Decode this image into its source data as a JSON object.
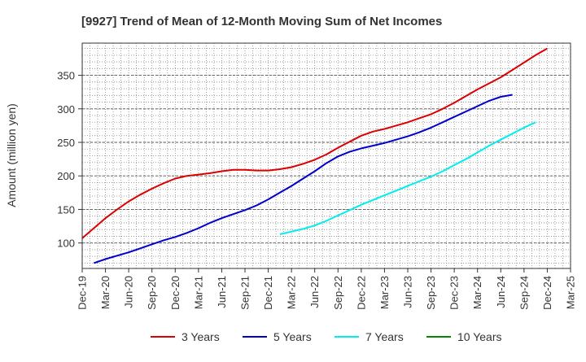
{
  "chart_data": {
    "type": "line",
    "title": "[9927]  Trend of Mean of 12-Month Moving Sum of Net Incomes",
    "ylabel": "Amount (million yen)",
    "xlabel": "",
    "x_ticks": [
      "Dec-19",
      "Mar-20",
      "Jun-20",
      "Sep-20",
      "Dec-20",
      "Mar-21",
      "Jun-21",
      "Sep-21",
      "Dec-21",
      "Mar-22",
      "Jun-22",
      "Sep-22",
      "Dec-22",
      "Mar-23",
      "Jun-23",
      "Sep-23",
      "Dec-23",
      "Mar-24",
      "Jun-24",
      "Sep-24",
      "Dec-24",
      "Mar-25"
    ],
    "y_ticks": [
      100,
      150,
      200,
      250,
      300,
      350
    ],
    "ylim": [
      62,
      398
    ],
    "grid": true,
    "legend_position": "bottom",
    "series": [
      {
        "name": "3 Years",
        "color": "#dd0000",
        "start_index": 0,
        "values": [
          107,
          122,
          137,
          150,
          162,
          172,
          181,
          189,
          196,
          200,
          202,
          204,
          207,
          209,
          209,
          208,
          208,
          210,
          213,
          218,
          224,
          232,
          242,
          251,
          260,
          266,
          270,
          275,
          280,
          286,
          292,
          300,
          309,
          319,
          329,
          338,
          347,
          358,
          369,
          380,
          390
        ]
      },
      {
        "name": "5 Years",
        "color": "#0000cc",
        "start_index": 1,
        "values": [
          70,
          76,
          81,
          86,
          92,
          98,
          104,
          109,
          115,
          122,
          130,
          137,
          143,
          149,
          156,
          165,
          175,
          185,
          196,
          207,
          219,
          229,
          236,
          241,
          245,
          249,
          254,
          259,
          265,
          272,
          280,
          288,
          296,
          304,
          312,
          318,
          321
        ]
      },
      {
        "name": "7 Years",
        "color": "#00eeee",
        "start_index": 17,
        "values": [
          113,
          117,
          121,
          126,
          133,
          141,
          149,
          157,
          164,
          171,
          178,
          185,
          192,
          199,
          207,
          216,
          225,
          235,
          245,
          254,
          263,
          272,
          280
        ]
      },
      {
        "name": "10 Years",
        "color": "#008800",
        "start_index": 0,
        "values": []
      }
    ]
  }
}
